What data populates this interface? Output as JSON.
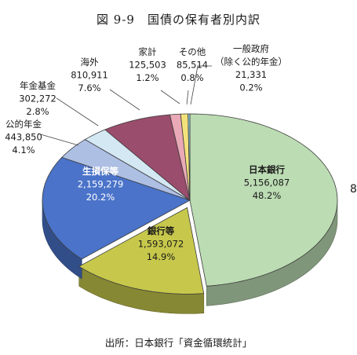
{
  "title": "図 9-9　国債の保有者別内訳",
  "source": "出所：日本銀行「資金循環統計」",
  "cut_off_text": "8",
  "chart_data": {
    "type": "pie",
    "slices": [
      {
        "name": "日本銀行",
        "value": "5,156,087",
        "percent": "48.2%",
        "raw": 5156087,
        "color": "#bcdcb3"
      },
      {
        "name": "銀行等",
        "value": "1,593,072",
        "percent": "14.9%",
        "raw": 1593072,
        "color": "#c7c84b"
      },
      {
        "name": "生損保等",
        "value": "2,159,279",
        "percent": "20.2%",
        "raw": 2159279,
        "color": "#4a73c9"
      },
      {
        "name": "公的年金",
        "value": "443,850",
        "percent": "4.1%",
        "raw": 443850,
        "color": "#aebfe4"
      },
      {
        "name": "年金基金",
        "value": "302,272",
        "percent": "2.8%",
        "raw": 302272,
        "color": "#d4e8f3"
      },
      {
        "name": "海外",
        "value": "810,911",
        "percent": "7.6%",
        "raw": 810911,
        "color": "#9a4d6c"
      },
      {
        "name": "家計",
        "value": "125,503",
        "percent": "1.2%",
        "raw": 125503,
        "color": "#e9a9b6"
      },
      {
        "name": "その他",
        "value": "85,514",
        "percent": "0.8%",
        "raw": 85514,
        "color": "#f3e27a"
      },
      {
        "name": "一般政府",
        "name2": "（除く公的年金）",
        "value": "21,331",
        "percent": "0.2%",
        "raw": 21331,
        "color": "#8fd1e4"
      }
    ]
  }
}
